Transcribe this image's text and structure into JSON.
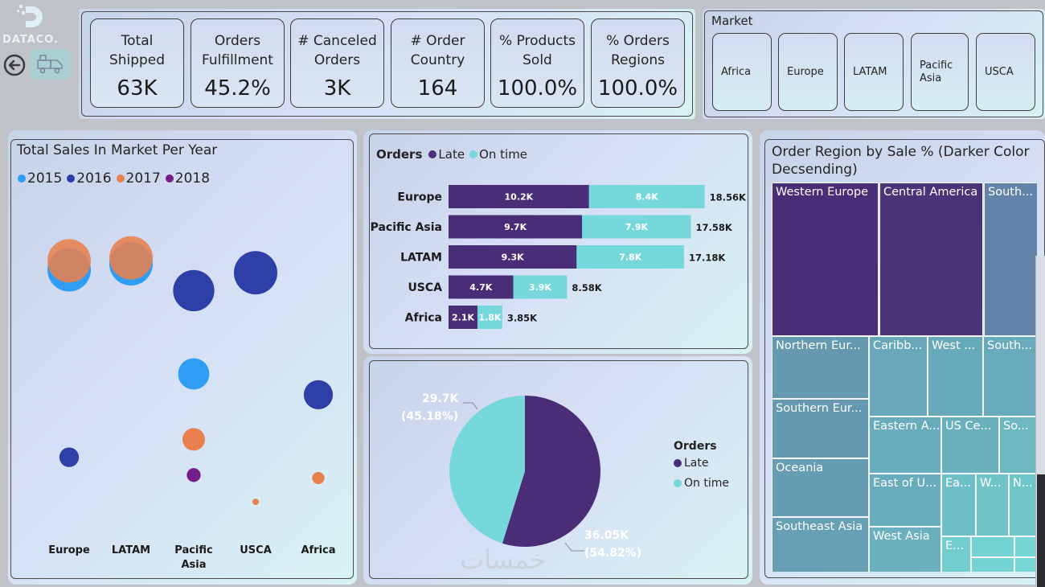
{
  "brand": {
    "logo_text": "DATACO.",
    "back_icon": "arrow-left-circle-icon",
    "truck_icon": "delivery-truck-icon"
  },
  "kpis": [
    {
      "label_line1": "Total",
      "label_line2": "Shipped",
      "value": "63K"
    },
    {
      "label_line1": "Orders",
      "label_line2": "Fulfillment",
      "value": "45.2%"
    },
    {
      "label_line1": "# Canceled",
      "label_line2": "Orders",
      "value": "3K"
    },
    {
      "label_line1": "# Order",
      "label_line2": "Country",
      "value": "164"
    },
    {
      "label_line1": "% Products",
      "label_line2": "Sold",
      "value": "100.0%"
    },
    {
      "label_line1": "% Orders",
      "label_line2": "Regions",
      "value": "100.0%"
    }
  ],
  "market_slicer": {
    "title": "Market",
    "options": [
      "Africa",
      "Europe",
      "LATAM",
      "Pacific Asia",
      "USCA"
    ]
  },
  "colors": {
    "y2015": "#2f9df4",
    "y2016": "#2e3fa8",
    "y2017": "#e8814f",
    "y2018": "#741e8a",
    "late": "#4a2d77",
    "on_time": "#77d8db"
  },
  "chart_data": [
    {
      "type": "scatter",
      "title": "Total Sales In Market Per Year",
      "legend": [
        "2015",
        "2016",
        "2017",
        "2018"
      ],
      "legend_position": "top-left",
      "categories": [
        "Europe",
        "LATAM",
        "Pacific Asia",
        "USCA",
        "Africa"
      ],
      "note": "bubble chart; y-axis unlabeled; relative vertical level and bubble size per market/year",
      "points": [
        {
          "market": "Europe",
          "year": "2015",
          "level": 0.85,
          "size": 1.0
        },
        {
          "market": "Europe",
          "year": "2017",
          "level": 0.88,
          "size": 1.0
        },
        {
          "market": "Europe",
          "year": "2016",
          "level": 0.22,
          "size": 0.45
        },
        {
          "market": "LATAM",
          "year": "2015",
          "level": 0.87,
          "size": 1.0
        },
        {
          "market": "LATAM",
          "year": "2017",
          "level": 0.89,
          "size": 1.0
        },
        {
          "market": "Pacific Asia",
          "year": "2016",
          "level": 0.78,
          "size": 0.95
        },
        {
          "market": "Pacific Asia",
          "year": "2015",
          "level": 0.5,
          "size": 0.72
        },
        {
          "market": "Pacific Asia",
          "year": "2017",
          "level": 0.28,
          "size": 0.52
        },
        {
          "market": "Pacific Asia",
          "year": "2018",
          "level": 0.16,
          "size": 0.32
        },
        {
          "market": "USCA",
          "year": "2016",
          "level": 0.84,
          "size": 1.0
        },
        {
          "market": "USCA",
          "year": "2017",
          "level": 0.07,
          "size": 0.14
        },
        {
          "market": "Africa",
          "year": "2016",
          "level": 0.43,
          "size": 0.67
        },
        {
          "market": "Africa",
          "year": "2017",
          "level": 0.15,
          "size": 0.28
        }
      ]
    },
    {
      "type": "bar",
      "title": "Orders",
      "legend": [
        "Late",
        "On time"
      ],
      "legend_position": "top-left",
      "categories": [
        "Europe",
        "Pacific Asia",
        "LATAM",
        "USCA",
        "Africa"
      ],
      "series": [
        {
          "name": "Late",
          "values": [
            10.2,
            9.7,
            9.3,
            4.7,
            2.1
          ],
          "labels": [
            "10.2K",
            "9.7K",
            "9.3K",
            "4.7K",
            "2.1K"
          ]
        },
        {
          "name": "On time",
          "values": [
            8.4,
            7.9,
            7.8,
            3.9,
            1.8
          ],
          "labels": [
            "8.4K",
            "7.9K",
            "7.8K",
            "3.9K",
            "1.8K"
          ]
        }
      ],
      "totals": [
        "18.56K",
        "17.58K",
        "17.18K",
        "8.58K",
        "3.85K"
      ],
      "total_values": [
        18.56,
        17.58,
        17.18,
        8.58,
        3.85
      ],
      "orientation": "horizontal-stacked",
      "units": "K orders"
    },
    {
      "type": "pie",
      "legend_title": "Orders",
      "legend_position": "right",
      "slices": [
        {
          "name": "Late",
          "value": 36.05,
          "label": "36.05K",
          "pct_label": "(54.82%)"
        },
        {
          "name": "On time",
          "value": 29.7,
          "label": "29.7K",
          "pct_label": "(45.18%)"
        }
      ]
    },
    {
      "type": "heatmap",
      "subtype": "treemap",
      "title": "Order Region by Sale % (Darker Color Decsending)",
      "cells": [
        "Western Europe",
        "Central America",
        "South...",
        "Northern Eur...",
        "Southern Eur...",
        "Oceania",
        "Southeast Asia",
        "Caribb...",
        "West ...",
        "South...",
        "Eastern A...",
        "US Ce...",
        "So...",
        "East of U...",
        "Ea...",
        "W...",
        "N...",
        "West Asia",
        "E...",
        "",
        "",
        "",
        ""
      ]
    }
  ],
  "watermark": "خمسات"
}
